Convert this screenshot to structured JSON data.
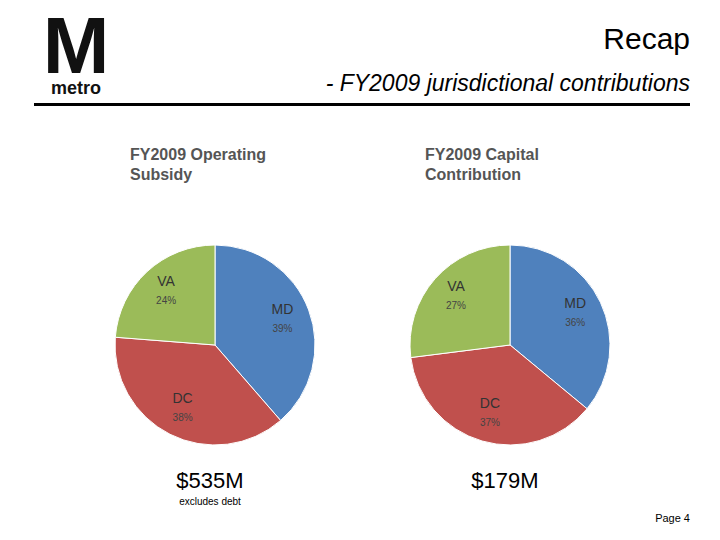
{
  "header": {
    "logo": "M",
    "logo_sub": "metro",
    "title": "Recap",
    "subtitle": "- FY2009 jurisdictional contributions"
  },
  "chart_data": [
    {
      "type": "pie",
      "title": "FY2009 Operating Subsidy",
      "categories": [
        "MD",
        "DC",
        "VA"
      ],
      "values": [
        39,
        38,
        24
      ],
      "value_labels": [
        "39%",
        "38%",
        "24%"
      ],
      "colors": [
        "#4f81bd",
        "#c0504d",
        "#9bbb59"
      ],
      "data_labels": true,
      "total": "$535M",
      "note": "excludes debt"
    },
    {
      "type": "pie",
      "title": "FY2009 Capital Contribution",
      "categories": [
        "MD",
        "DC",
        "VA"
      ],
      "values": [
        36,
        37,
        27
      ],
      "value_labels": [
        "36%",
        "37%",
        "27%"
      ],
      "colors": [
        "#4f81bd",
        "#c0504d",
        "#9bbb59"
      ],
      "data_labels": true,
      "total": "$179M"
    }
  ],
  "footer": {
    "page": "Page 4"
  }
}
